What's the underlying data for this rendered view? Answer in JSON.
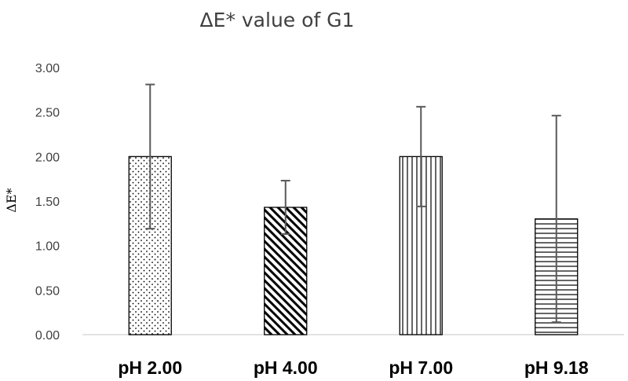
{
  "chart_data": {
    "type": "bar",
    "title": "ΔE*  value of G1",
    "ylabel": "ΔE*",
    "xlabel": "",
    "categories": [
      "pH 2.00",
      "pH 4.00",
      "pH 7.00",
      "pH 9.18"
    ],
    "values": [
      2.0,
      1.43,
      2.0,
      1.3
    ],
    "error": [
      0.81,
      0.3,
      0.56,
      1.16
    ],
    "ylim": [
      0,
      3.0
    ],
    "yticks": [
      "0.00",
      "0.50",
      "1.00",
      "1.50",
      "2.00",
      "2.50",
      "3.00"
    ],
    "grid": false,
    "bar_patterns": [
      "dots",
      "diagonal-stripes",
      "vertical-stripes",
      "horizontal-stripes"
    ],
    "colors": {
      "bar_fill": "#ffffff",
      "bar_stroke": "#000000",
      "error_bar": "#595959",
      "axis": "#d9d9d9"
    }
  }
}
